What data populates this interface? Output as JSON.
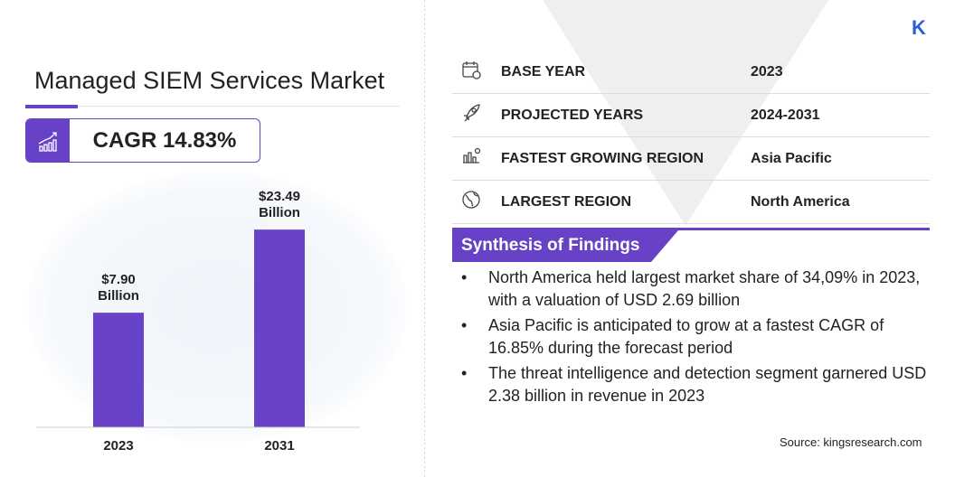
{
  "title": "Managed SIEM Services Market",
  "cagr": "CAGR 14.83%",
  "logo": "K",
  "facts": [
    {
      "icon": "calendar-icon",
      "label": "BASE YEAR",
      "value": "2023"
    },
    {
      "icon": "rocket-icon",
      "label": "PROJECTED YEARS",
      "value": "2024-2031"
    },
    {
      "icon": "growth-region-icon",
      "label": "FASTEST GROWING REGION",
      "value": "Asia Pacific"
    },
    {
      "icon": "globe-icon",
      "label": "LARGEST REGION",
      "value": "North America"
    }
  ],
  "synthesis": {
    "heading": "Synthesis of Findings",
    "items": [
      "North America held largest market share of 34,09% in 2023, with a valuation of USD 2.69 billion",
      "Asia Pacific is anticipated to grow at a fastest CAGR of 16.85% during the forecast period",
      "The threat intelligence and detection segment garnered USD 2.38 billion in revenue in 2023"
    ]
  },
  "source": "Source: kingsresearch.com",
  "colors": {
    "accent": "#6741c6",
    "logo": "#2d5fd6"
  },
  "chart_data": {
    "type": "bar",
    "categories": [
      "2023",
      "2031"
    ],
    "values": [
      7.9,
      23.49
    ],
    "data_labels": [
      [
        "$7.90",
        "Billion"
      ],
      [
        "$23.49",
        "Billion"
      ]
    ],
    "unit": "USD Billion",
    "grid": false
  }
}
